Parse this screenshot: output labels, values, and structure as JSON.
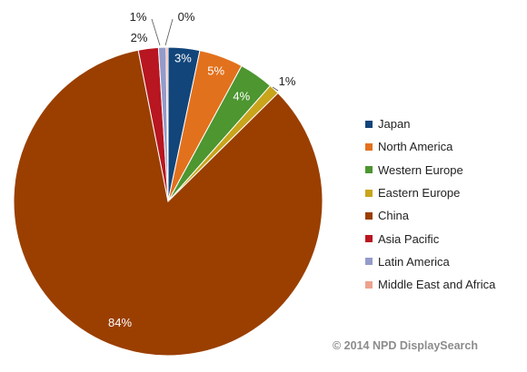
{
  "chart_data": {
    "type": "pie",
    "title": "",
    "categories": [
      "Japan",
      "North America",
      "Western Europe",
      "Eastern Europe",
      "China",
      "Asia Pacific",
      "Latin America",
      "Middle East and Africa"
    ],
    "values": [
      3.3,
      4.6,
      3.6,
      1.1,
      84.3,
      2.1,
      0.8,
      0.2
    ],
    "data_labels": [
      "3%",
      "5%",
      "4%",
      "1%",
      "84%",
      "2%",
      "1%",
      "0%"
    ],
    "colors": [
      "#12457a",
      "#e2711d",
      "#4d9630",
      "#c8a51b",
      "#9a3f00",
      "#b81620",
      "#949bc9",
      "#eda28e"
    ],
    "start_angle": "12 o'clock, clockwise",
    "legend_position": "right"
  },
  "footer": {
    "copyright": "© 2014 NPD DisplaySearch"
  }
}
